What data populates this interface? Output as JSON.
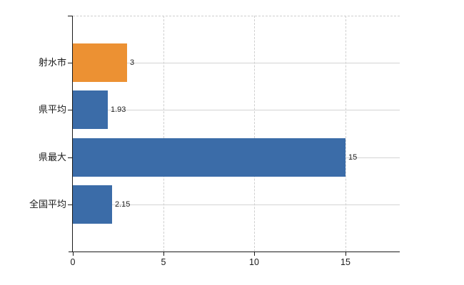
{
  "chart_data": {
    "type": "bar",
    "orientation": "horizontal",
    "title": "",
    "xlabel": "",
    "ylabel": "",
    "categories": [
      "射水市",
      "県平均",
      "県最大",
      "全国平均"
    ],
    "values": [
      3,
      1.93,
      15,
      2.15
    ],
    "value_labels": [
      "3",
      "1.93",
      "15",
      "2.15"
    ],
    "bar_colors": [
      "#EC9133",
      "#3B6CA8",
      "#3B6CA8",
      "#3B6CA8"
    ],
    "x_ticks": [
      0,
      5,
      10,
      15
    ],
    "x_tick_labels": [
      "0",
      "5",
      "10",
      "15"
    ],
    "xlim": [
      0,
      18
    ],
    "grid": true,
    "legend": false,
    "accent_colors": {
      "highlight_bar": "#EC9133",
      "default_bar": "#3B6CA8",
      "gridline": "#d4d4d4",
      "axis": "#1b1b1b"
    }
  }
}
